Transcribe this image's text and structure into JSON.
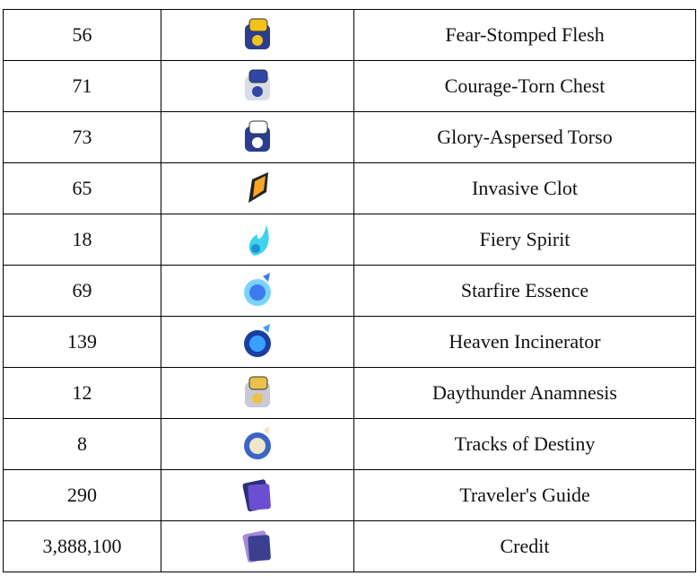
{
  "table": {
    "rows": [
      [
        "56",
        "Fear-Stomped Flesh"
      ],
      [
        "71",
        "Courage-Torn Chest"
      ],
      [
        "73",
        "Glory-Aspersed Torso"
      ],
      [
        "65",
        "Invasive Clot"
      ],
      [
        "18",
        "Fiery Spirit"
      ],
      [
        "69",
        "Starfire Essence"
      ],
      [
        "139",
        "Heaven Incinerator"
      ],
      [
        "12",
        "Daythunder Anamnesis"
      ],
      [
        "8",
        "Tracks of Destiny"
      ],
      [
        "290",
        "Traveler's Guide"
      ],
      [
        "3,888,100",
        "Credit"
      ]
    ]
  }
}
